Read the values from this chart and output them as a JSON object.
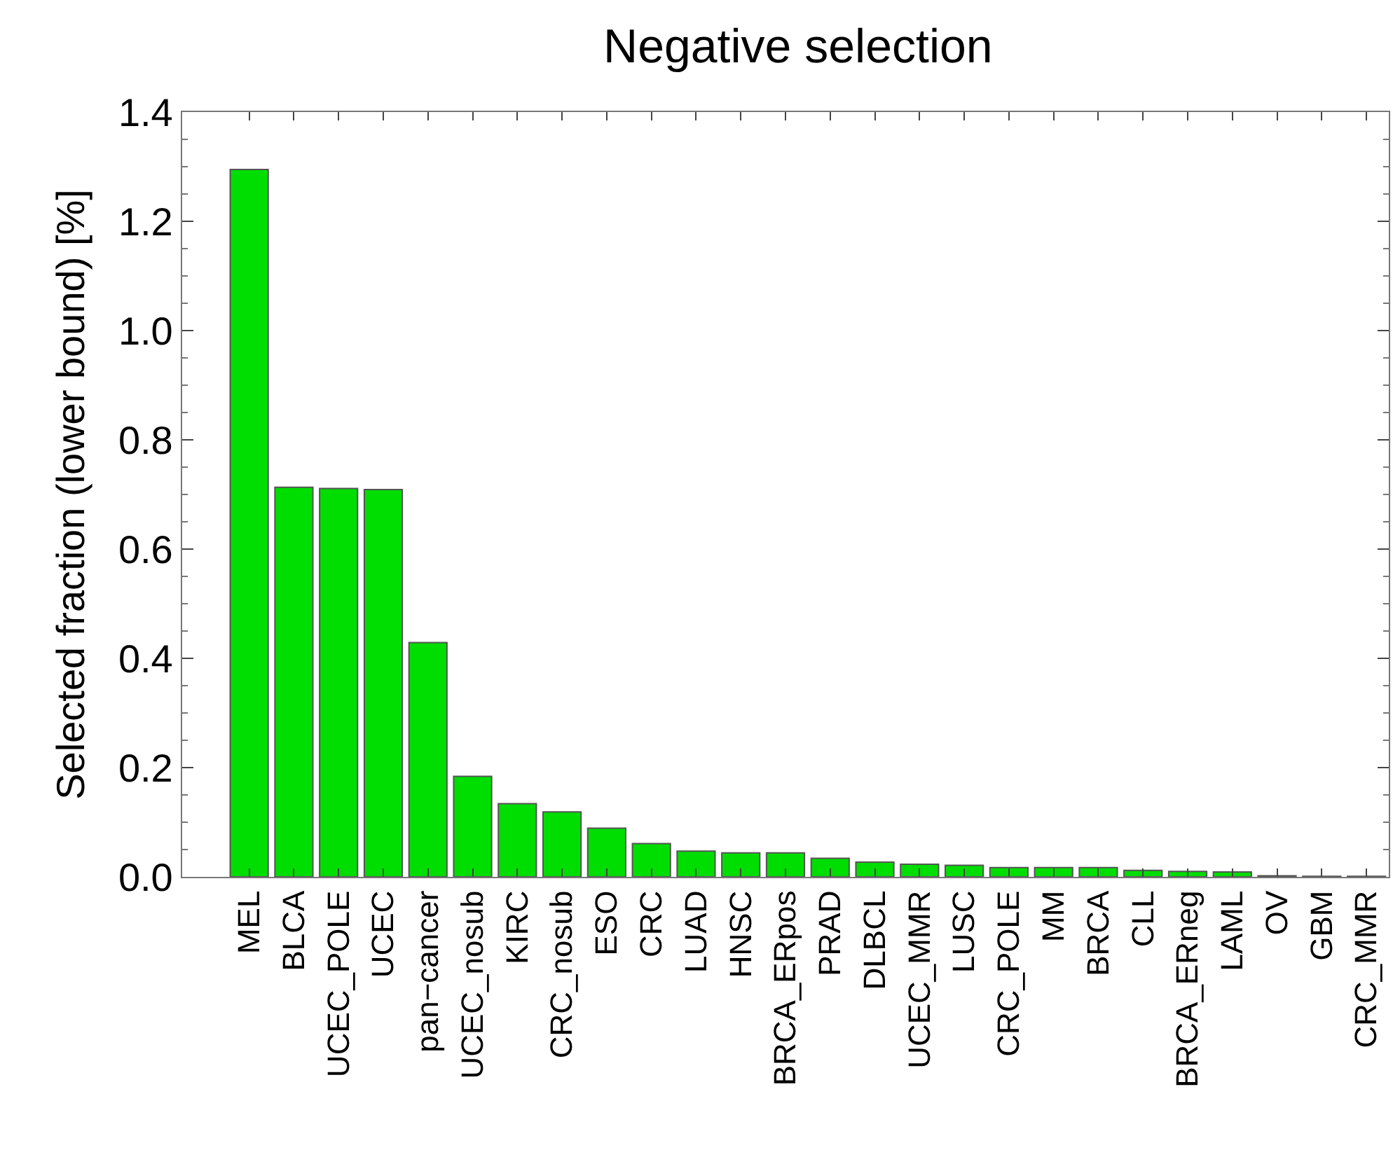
{
  "chart_data": {
    "type": "bar",
    "title": "Negative selection",
    "ylabel": "Selected fraction (lower bound) [%]",
    "categories": [
      "MEL",
      "BLCA",
      "UCEC_POLE",
      "UCEC",
      "pan−cancer",
      "UCEC_nosub",
      "KIRC",
      "CRC_nosub",
      "ESO",
      "CRC",
      "LUAD",
      "HNSC",
      "BRCA_ERpos",
      "PRAD",
      "DLBCL",
      "UCEC_MMR",
      "LUSC",
      "CRC_POLE",
      "MM",
      "BRCA",
      "CLL",
      "BRCA_ERneg",
      "LAML",
      "OV",
      "GBM",
      "CRC_MMR"
    ],
    "values": [
      1.295,
      0.713,
      0.711,
      0.709,
      0.429,
      0.184,
      0.134,
      0.119,
      0.089,
      0.061,
      0.047,
      0.044,
      0.044,
      0.034,
      0.027,
      0.023,
      0.021,
      0.017,
      0.017,
      0.017,
      0.012,
      0.01,
      0.009,
      0.002,
      0.001,
      0.001
    ],
    "color": "#00dd00",
    "ylim": [
      0,
      1.4
    ],
    "yticks": [
      {
        "value": 0,
        "label": "0.0"
      },
      0.2,
      0.4,
      0.6,
      0.8,
      {
        "value": 1,
        "label": "1.0"
      },
      1.2,
      1.4
    ]
  }
}
